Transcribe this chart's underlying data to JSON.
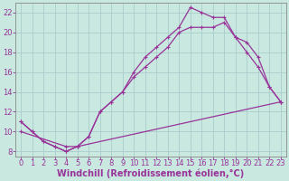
{
  "xlabel": "Windchill (Refroidissement éolien,°C)",
  "background_color": "#c8e8e0",
  "grid_color": "#aacccc",
  "line_color": "#993399",
  "xlim": [
    -0.5,
    23.5
  ],
  "ylim": [
    7.5,
    23.0
  ],
  "xticks": [
    0,
    1,
    2,
    3,
    4,
    5,
    6,
    7,
    8,
    9,
    10,
    11,
    12,
    13,
    14,
    15,
    16,
    17,
    18,
    19,
    20,
    21,
    22,
    23
  ],
  "yticks": [
    8,
    10,
    12,
    14,
    16,
    18,
    20,
    22
  ],
  "line1_x": [
    0,
    1,
    2,
    3,
    4,
    5,
    6,
    7,
    8,
    9,
    10,
    11,
    12,
    13,
    14,
    15,
    16,
    17,
    18,
    19,
    20,
    21,
    22,
    23
  ],
  "line1_y": [
    11.0,
    10.0,
    9.0,
    8.5,
    8.0,
    8.5,
    9.5,
    12.0,
    13.0,
    14.0,
    16.0,
    17.5,
    18.5,
    19.5,
    20.5,
    22.5,
    22.0,
    21.5,
    21.5,
    19.5,
    19.0,
    17.5,
    14.5,
    13.0
  ],
  "line2_x": [
    0,
    1,
    2,
    3,
    4,
    5,
    6,
    7,
    8,
    9,
    10,
    11,
    12,
    13,
    14,
    15,
    16,
    17,
    18,
    19,
    20,
    21,
    22,
    23
  ],
  "line2_y": [
    11.0,
    10.0,
    9.0,
    8.5,
    8.0,
    8.5,
    9.5,
    12.0,
    13.0,
    14.0,
    15.5,
    16.5,
    17.5,
    18.5,
    20.0,
    20.5,
    20.5,
    20.5,
    21.0,
    19.5,
    18.0,
    16.5,
    14.5,
    13.0
  ],
  "line3_x": [
    0,
    4,
    5,
    23
  ],
  "line3_y": [
    10.0,
    8.5,
    8.5,
    13.0
  ],
  "font_size_xlabel": 7,
  "font_size_tick": 6,
  "marker_size": 2.5
}
